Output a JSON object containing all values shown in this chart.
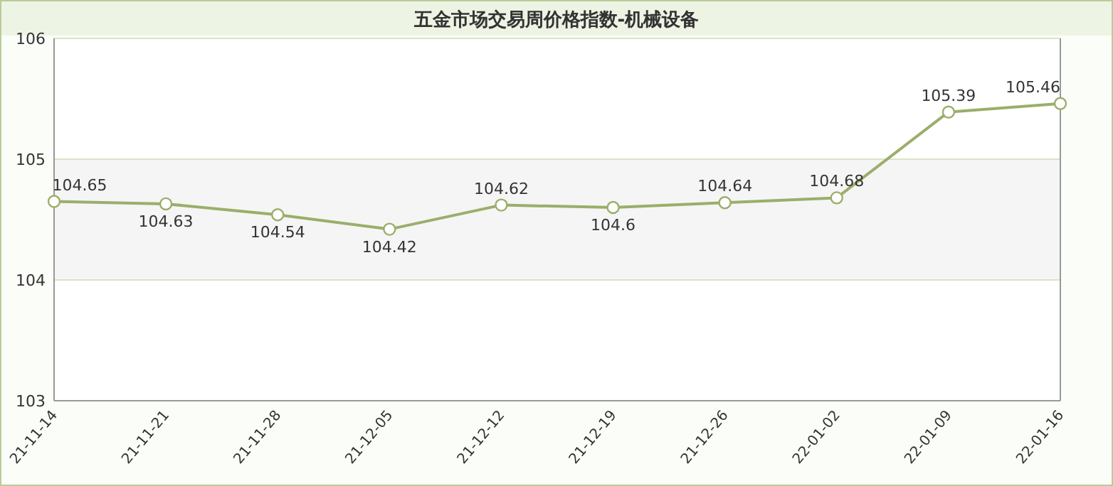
{
  "chart_data": {
    "type": "line",
    "title": "五金市场交易周价格指数-机械设备",
    "categories": [
      "21-11-14",
      "21-11-21",
      "21-11-28",
      "21-12-05",
      "21-12-12",
      "21-12-19",
      "21-12-26",
      "22-01-02",
      "22-01-09",
      "22-01-16"
    ],
    "series": [
      {
        "color": "#9aae6a",
        "values": [
          104.65,
          104.63,
          104.54,
          104.42,
          104.62,
          104.6,
          104.64,
          104.68,
          105.39,
          105.46
        ]
      }
    ],
    "ylim": [
      103,
      106
    ],
    "yticks": [
      103,
      104,
      105,
      106
    ],
    "bands": [
      {
        "axis": "y",
        "from": 104,
        "to": 105,
        "color": "#f5f5f5"
      }
    ],
    "grid": "y",
    "marker": "circle",
    "line_style": "solid",
    "data_labels": true
  }
}
